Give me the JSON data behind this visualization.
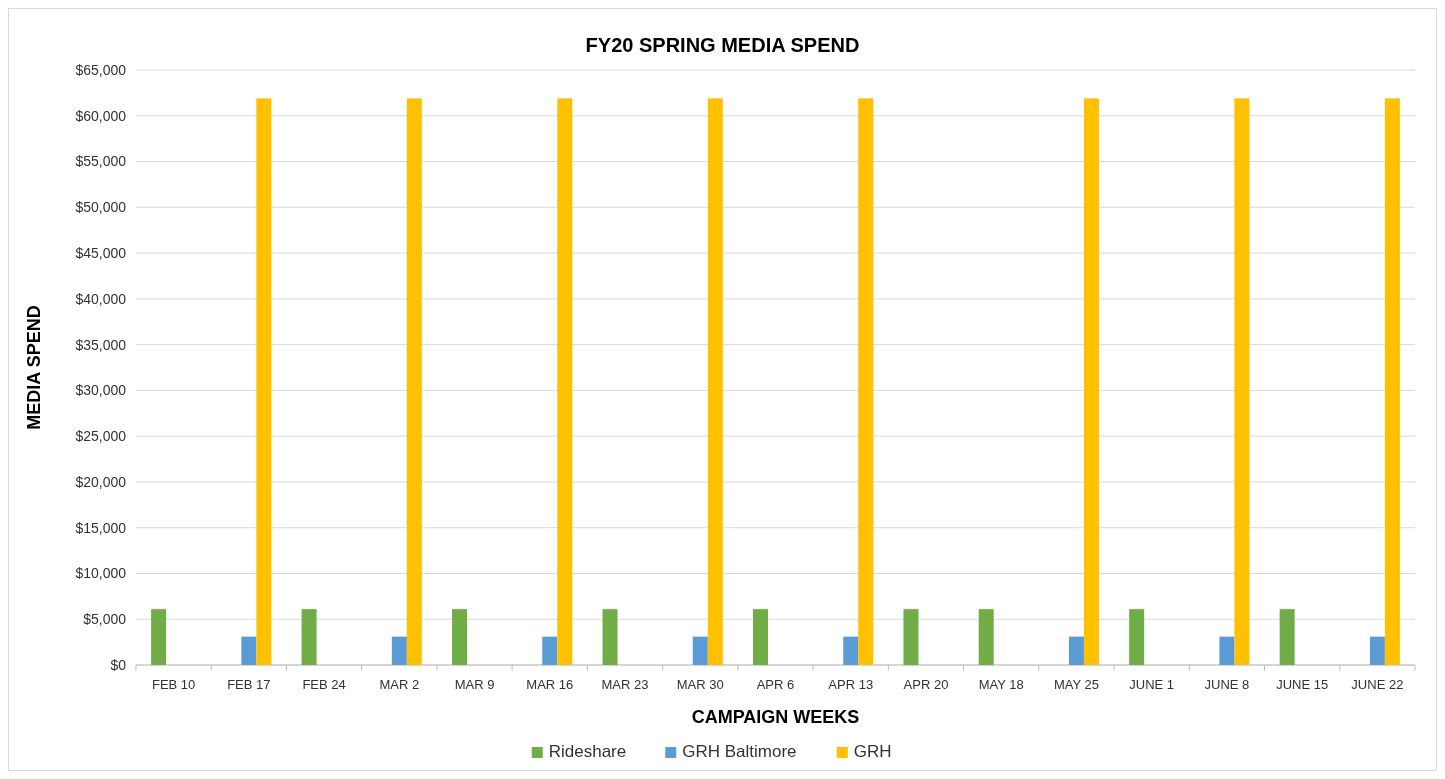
{
  "chart_data": {
    "type": "bar",
    "title": "FY20 SPRING MEDIA SPEND",
    "xlabel": "CAMPAIGN WEEKS",
    "ylabel": "MEDIA SPEND",
    "categories": [
      "FEB 10",
      "FEB 17",
      "FEB 24",
      "MAR 2",
      "MAR 9",
      "MAR 16",
      "MAR 23",
      "MAR 30",
      "APR 6",
      "APR 13",
      "APR 20",
      "MAY 18",
      "MAY 25",
      "JUNE 1",
      "JUNE 8",
      "JUNE 15",
      "JUNE 22"
    ],
    "series": [
      {
        "name": "Rideshare",
        "color": "#70ad47",
        "values": [
          6100,
          null,
          6100,
          null,
          6100,
          null,
          6100,
          null,
          6100,
          null,
          6100,
          6100,
          null,
          6100,
          null,
          6100,
          null
        ]
      },
      {
        "name": "GRH Baltimore",
        "color": "#5b9bd5",
        "values": [
          null,
          3100,
          null,
          3100,
          null,
          3100,
          null,
          3100,
          null,
          3100,
          null,
          null,
          3100,
          null,
          3100,
          null,
          3100
        ]
      },
      {
        "name": "GRH",
        "color": "#ffc000",
        "values": [
          null,
          61900,
          null,
          61900,
          null,
          61900,
          null,
          61900,
          null,
          61900,
          null,
          null,
          61900,
          null,
          61900,
          null,
          61900
        ]
      }
    ],
    "ylim": [
      0,
      65000
    ],
    "yticks": [
      {
        "value": 0,
        "label": "$0"
      },
      {
        "value": 5000,
        "label": "$5,000"
      },
      {
        "value": 10000,
        "label": "$10,000"
      },
      {
        "value": 15000,
        "label": "$15,000"
      },
      {
        "value": 20000,
        "label": "$20,000"
      },
      {
        "value": 25000,
        "label": "$25,000"
      },
      {
        "value": 30000,
        "label": "$30,000"
      },
      {
        "value": 35000,
        "label": "$35,000"
      },
      {
        "value": 40000,
        "label": "$40,000"
      },
      {
        "value": 45000,
        "label": "$45,000"
      },
      {
        "value": 50000,
        "label": "$50,000"
      },
      {
        "value": 55000,
        "label": "$55,000"
      },
      {
        "value": 60000,
        "label": "$60,000"
      },
      {
        "value": 65000,
        "label": "$65,000"
      }
    ],
    "grid": "y",
    "legend": "bottom"
  }
}
